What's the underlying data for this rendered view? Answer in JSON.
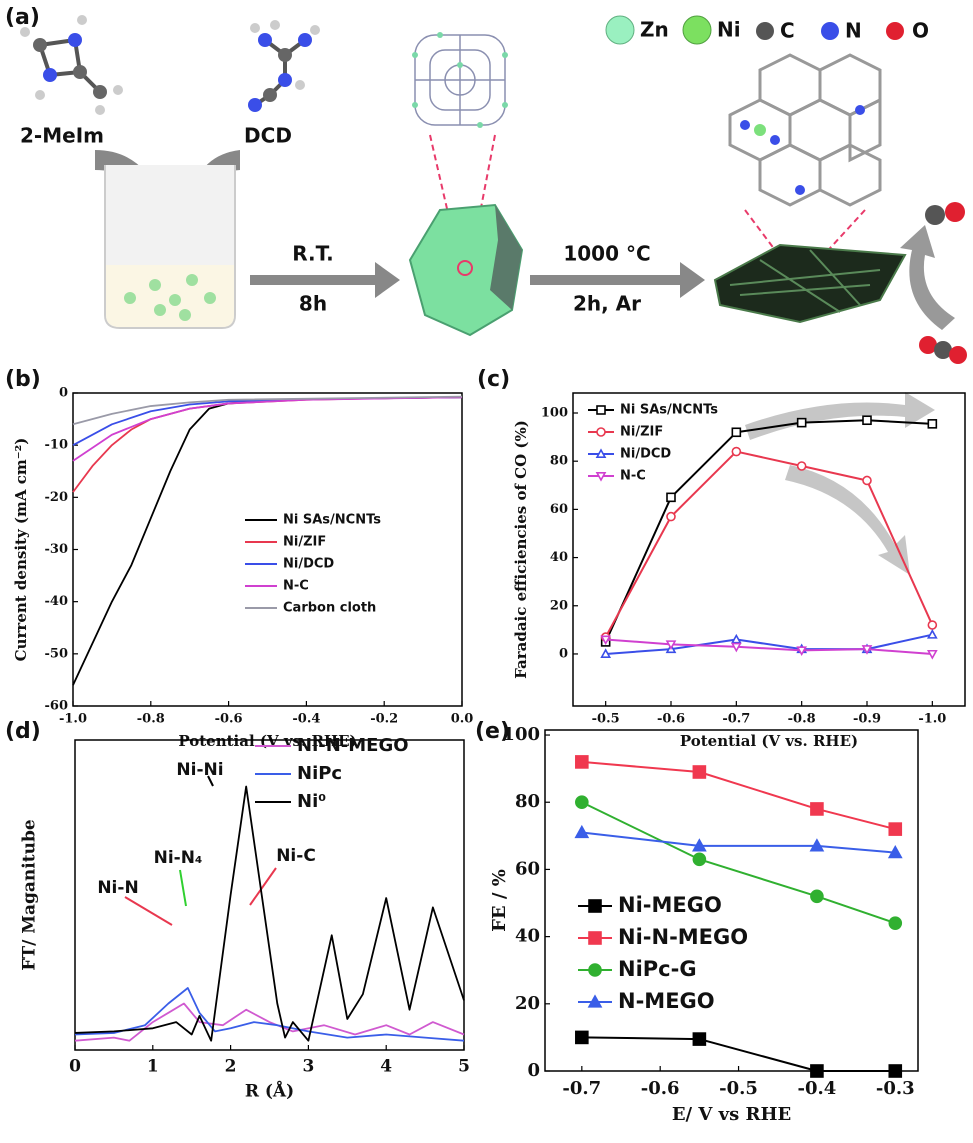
{
  "scheme": {
    "panel_label": "(a)",
    "reagent_1": "2-MeIm",
    "reagent_2": "DCD",
    "step_1_top": "R.T.",
    "step_1_bottom": "8h",
    "step_2_top": "1000 °C",
    "step_2_bottom": "2h, Ar",
    "legend": [
      "Zn",
      "Ni",
      "C",
      "N",
      "O"
    ]
  },
  "chart_data": [
    {
      "type": "line",
      "panel_label": "(b)",
      "x_label": "Potential (V vs. RHE)",
      "y_label": "Current density (mA cm⁻²)",
      "xlim": [
        -1,
        0
      ],
      "xticks": [
        {
          "value": -1,
          "label": "-1.0"
        },
        -0.8,
        -0.6,
        -0.4,
        -0.2,
        {
          "value": 0,
          "label": "0.0"
        }
      ],
      "ylim": [
        -60,
        0
      ],
      "yticks": [
        0,
        -10,
        -20,
        -30,
        -40,
        -50,
        -60
      ],
      "series": [
        {
          "name": "Ni SAs/NCNTs",
          "color": "#000000",
          "x": [
            -1,
            -0.95,
            -0.9,
            -0.85,
            -0.8,
            -0.75,
            -0.7,
            -0.65,
            -0.6,
            -0.5,
            -0.4,
            -0.2,
            0
          ],
          "values": [
            -56,
            -48,
            -40,
            -33,
            -24,
            -15,
            -7,
            -3,
            -2,
            -1.5,
            -1.2,
            -1,
            -0.8
          ]
        },
        {
          "name": "Ni/ZIF",
          "color": "#e8384f",
          "x": [
            -1,
            -0.95,
            -0.9,
            -0.85,
            -0.8,
            -0.7,
            -0.6,
            -0.4,
            -0.2,
            0
          ],
          "values": [
            -19,
            -14,
            -10,
            -7,
            -5,
            -3,
            -2,
            -1.3,
            -1,
            -0.8
          ]
        },
        {
          "name": "Ni/DCD",
          "color": "#3a4ee8",
          "x": [
            -1,
            -0.9,
            -0.8,
            -0.7,
            -0.6,
            -0.4,
            0
          ],
          "values": [
            -10,
            -6,
            -3.5,
            -2.2,
            -1.6,
            -1.2,
            -0.8
          ]
        },
        {
          "name": "N-C",
          "color": "#d040d0",
          "x": [
            -1,
            -0.9,
            -0.8,
            -0.7,
            -0.6,
            -0.4,
            0
          ],
          "values": [
            -13,
            -8,
            -5,
            -3,
            -2,
            -1.3,
            -0.8
          ]
        },
        {
          "name": "Carbon cloth",
          "color": "#9a9aa8",
          "x": [
            -1,
            -0.9,
            -0.8,
            -0.7,
            -0.6,
            0
          ],
          "values": [
            -6,
            -4,
            -2.5,
            -1.8,
            -1.3,
            -0.7
          ]
        }
      ]
    },
    {
      "type": "line",
      "panel_label": "(c)",
      "x_label": "Potential (V vs. RHE)",
      "y_label": "Faradaic efficiencies of CO (%)",
      "x": [
        -0.5,
        -0.6,
        -0.7,
        -0.8,
        -0.9,
        -1
      ],
      "xlim": [
        -0.45,
        -1.05
      ],
      "xticks": [
        -0.5,
        -0.6,
        -0.7,
        -0.8,
        -0.9,
        {
          "value": -1,
          "label": "-1.0"
        }
      ],
      "ylim": [
        -21.6,
        108.3
      ],
      "yticks": [
        0,
        20,
        40,
        60,
        80,
        100
      ],
      "markers": "open",
      "series": [
        {
          "name": "Ni SAs/NCNTs",
          "color": "#000000",
          "marker": "square",
          "values": [
            5,
            65,
            92,
            96,
            97,
            95.5
          ]
        },
        {
          "name": "Ni/ZIF",
          "color": "#e8384f",
          "marker": "circle",
          "values": [
            7,
            57,
            84,
            78,
            72,
            12
          ]
        },
        {
          "name": "Ni/DCD",
          "color": "#3a4ee8",
          "marker": "triangle",
          "values": [
            0,
            2,
            6,
            2,
            2,
            8
          ]
        },
        {
          "name": "N-C",
          "color": "#d040d0",
          "marker": "triangle-down",
          "values": [
            6,
            4,
            3,
            1.5,
            2,
            0
          ]
        }
      ]
    },
    {
      "type": "line",
      "panel_label": "(d)",
      "x_label": "R (Å)",
      "y_label": "FT/ Maganitube",
      "xlim": [
        0,
        5
      ],
      "xticks": [
        0,
        1,
        2,
        3,
        4,
        5
      ],
      "ylim": [
        0,
        10
      ],
      "annotations": [
        "Ni-Ni",
        "Ni-N",
        "Ni-N₄",
        "Ni-C"
      ],
      "series": [
        {
          "name": "Ni-N-MEGO",
          "color": "#d05ad0",
          "x": [
            0,
            0.5,
            0.7,
            1,
            1.2,
            1.4,
            1.6,
            1.9,
            2.2,
            2.5,
            2.8,
            3.2,
            3.6,
            4,
            4.3,
            4.6,
            5
          ],
          "values": [
            0.3,
            0.4,
            0.3,
            0.9,
            1.2,
            1.5,
            0.9,
            0.8,
            1.3,
            0.9,
            0.6,
            0.8,
            0.5,
            0.8,
            0.5,
            0.9,
            0.5
          ]
        },
        {
          "name": "NiPc",
          "color": "#3a5ee8",
          "x": [
            0,
            0.5,
            0.9,
            1.2,
            1.45,
            1.6,
            1.8,
            2,
            2.3,
            2.6,
            3,
            3.5,
            4,
            4.5,
            5
          ],
          "values": [
            0.5,
            0.55,
            0.8,
            1.5,
            2,
            1.2,
            0.6,
            0.7,
            0.9,
            0.8,
            0.6,
            0.4,
            0.5,
            0.4,
            0.3
          ]
        },
        {
          "name": "Ni⁰",
          "color": "#000000",
          "x": [
            0,
            0.5,
            1,
            1.3,
            1.5,
            1.6,
            1.75,
            2,
            2.2,
            2.4,
            2.6,
            2.7,
            2.8,
            3,
            3.3,
            3.5,
            3.7,
            4,
            4.3,
            4.6,
            5
          ],
          "values": [
            0.55,
            0.6,
            0.7,
            0.9,
            0.5,
            1.1,
            0.3,
            5,
            8.5,
            5,
            1.5,
            0.4,
            0.9,
            0.3,
            3.7,
            1,
            1.8,
            4.9,
            1.3,
            4.6,
            1.6
          ]
        }
      ]
    },
    {
      "type": "line",
      "panel_label": "(e)",
      "x_label": "E/ V vs RHE",
      "y_label": "FE / %",
      "x": [
        -0.7,
        -0.55,
        -0.4,
        -0.3
      ],
      "xlim": [
        -0.747,
        -0.271
      ],
      "xticks": [
        -0.7,
        -0.6,
        -0.5,
        -0.4,
        -0.3
      ],
      "ylim": [
        0,
        101.5
      ],
      "yticks": [
        0,
        20,
        40,
        60,
        80,
        100
      ],
      "markers": "filled",
      "series": [
        {
          "name": "Ni-MEGO",
          "color": "#000000",
          "marker": "square",
          "values": [
            10,
            9.5,
            0,
            0
          ]
        },
        {
          "name": "Ni-N-MEGO",
          "color": "#f0384f",
          "marker": "square",
          "values": [
            92,
            89,
            78,
            72
          ]
        },
        {
          "name": "NiPc-G",
          "color": "#30b030",
          "marker": "circle",
          "values": [
            80,
            63,
            52,
            44
          ]
        },
        {
          "name": "N-MEGO",
          "color": "#3a5ee8",
          "marker": "triangle",
          "values": [
            71,
            67,
            67,
            65
          ]
        }
      ]
    }
  ]
}
